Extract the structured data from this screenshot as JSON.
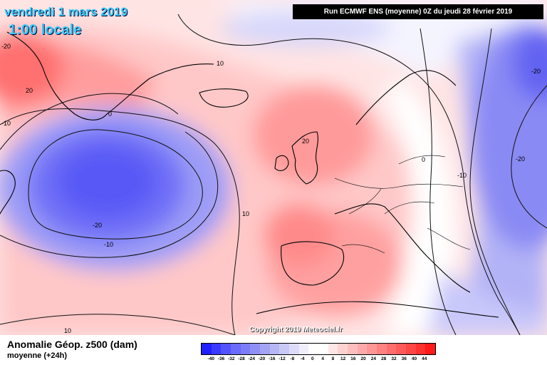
{
  "header": {
    "date_title": "vendredi 1 mars 2019",
    "time_title": "1:00 locale",
    "run_info": "Run ECMWF ENS (moyenne) 0Z du jeudi 28 février 2019"
  },
  "copyright": "Copyright 2019 Meteociel.fr",
  "legend": {
    "title": "Anomalie Géop. z500 (dam)",
    "subtitle": "moyenne   (+24h)",
    "colors": [
      "#2020ff",
      "#3a3aff",
      "#5252ff",
      "#6a6aff",
      "#7c7cf8",
      "#8f8ff5",
      "#a3a3f4",
      "#b6b6f5",
      "#c9c9f7",
      "#dcdcfa",
      "#eeeefd",
      "#ffffff",
      "#ffffff",
      "#ffe6e6",
      "#ffd2d2",
      "#ffbebe",
      "#ffaaaa",
      "#ff9696",
      "#ff8282",
      "#ff6e6e",
      "#ff5a5a",
      "#ff4646",
      "#ff3030",
      "#ff1a1a"
    ],
    "ticks": [
      "-40",
      "-36",
      "-32",
      "-28",
      "-24",
      "-20",
      "-16",
      "-12",
      "-8",
      "-4",
      "0",
      "4",
      "8",
      "12",
      "16",
      "20",
      "24",
      "28",
      "32",
      "36",
      "40",
      "44"
    ]
  },
  "map": {
    "contour_labels": [
      "-20",
      "20",
      "-10",
      "0",
      "10",
      "10",
      "-20",
      "-10",
      "20",
      "0",
      "-10",
      "-20",
      "-20",
      "10"
    ],
    "anomaly_colors": {
      "positive": "#ff8a8a",
      "negative": "#6a6aff",
      "neutral": "#ffffff"
    }
  }
}
